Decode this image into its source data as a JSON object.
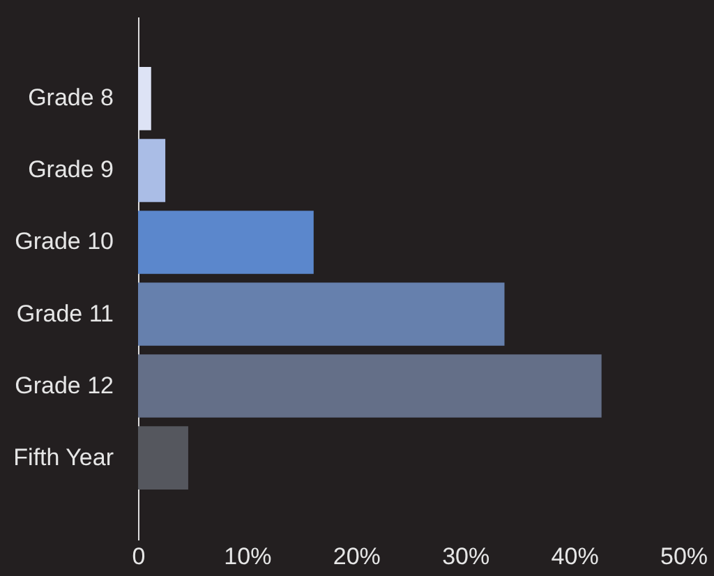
{
  "chart_data": {
    "type": "bar",
    "orientation": "horizontal",
    "categories": [
      "Grade 8",
      "Grade 9",
      "Grade 10",
      "Grade 11",
      "Grade 12",
      "Fifth Year"
    ],
    "values": [
      1.2,
      2.5,
      16.1,
      33.6,
      42.5,
      4.6
    ],
    "colors": [
      "#dde3f5",
      "#aabde6",
      "#5b87cc",
      "#6680ad",
      "#646f88",
      "#55575e"
    ],
    "xlim": [
      0,
      50
    ],
    "xticks": [
      0,
      {
        "value": 10,
        "label": "10%"
      },
      {
        "value": 20,
        "label": "20%"
      },
      {
        "value": 30,
        "label": "30%"
      },
      {
        "value": 40,
        "label": "40%"
      },
      {
        "value": 50,
        "label": "50%"
      }
    ],
    "grid": false,
    "legend": false
  }
}
